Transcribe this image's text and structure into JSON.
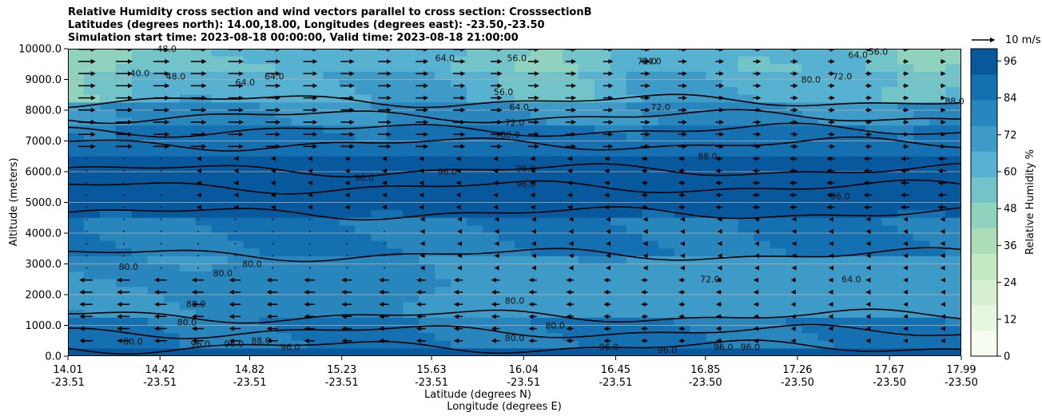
{
  "chart_data": {
    "type": "heatmap",
    "title_lines": [
      "Relative Humidity cross section and wind vectors parallel to cross section: CrosssectionB",
      "Latitudes (degrees north): 14.00,18.00, Longitudes (degrees east): -23.50,-23.50",
      "Simulation start time: 2023-08-18 00:00:00, Valid time: 2023-08-18 21:00:00"
    ],
    "xlabel": "Latitude (degrees N)",
    "xlabel2": "Longitude (degrees E)",
    "ylabel": "Altitude (meters)",
    "ylim": [
      0,
      10000
    ],
    "xlim": [
      14.01,
      17.99
    ],
    "y_ticks": [
      "0.0",
      "1000.0",
      "2000.0",
      "3000.0",
      "4000.0",
      "5000.0",
      "6000.0",
      "7000.0",
      "8000.0",
      "9000.0",
      "10000.0"
    ],
    "y_tick_values": [
      0,
      1000,
      2000,
      3000,
      4000,
      5000,
      6000,
      7000,
      8000,
      9000,
      10000
    ],
    "x_ticks": [
      {
        "lat": "14.01",
        "lon": "-23.51",
        "value": 14.01
      },
      {
        "lat": "14.42",
        "lon": "-23.51",
        "value": 14.42
      },
      {
        "lat": "14.82",
        "lon": "-23.51",
        "value": 14.82
      },
      {
        "lat": "15.23",
        "lon": "-23.51",
        "value": 15.23
      },
      {
        "lat": "15.63",
        "lon": "-23.51",
        "value": 15.63
      },
      {
        "lat": "16.04",
        "lon": "-23.51",
        "value": 16.04
      },
      {
        "lat": "16.45",
        "lon": "-23.51",
        "value": 16.45
      },
      {
        "lat": "16.85",
        "lon": "-23.50",
        "value": 16.85
      },
      {
        "lat": "17.26",
        "lon": "-23.50",
        "value": 17.26
      },
      {
        "lat": "17.67",
        "lon": "-23.50",
        "value": 17.67
      },
      {
        "lat": "17.99",
        "lon": "-23.50",
        "value": 17.99
      }
    ],
    "colorbar": {
      "label": "Relative Humidity %",
      "min": 0,
      "max": 100,
      "ticks": [
        "0",
        "12",
        "24",
        "36",
        "48",
        "60",
        "72",
        "84",
        "96"
      ],
      "tick_values": [
        0,
        12,
        24,
        36,
        48,
        60,
        72,
        84,
        96
      ],
      "colors": [
        "#f7fcf0",
        "#e6f6e1",
        "#d7efd1",
        "#c4e8c1",
        "#abdeb6",
        "#8fd3bf",
        "#72c4c8",
        "#57b1d0",
        "#3e9bc8",
        "#2886bd",
        "#1470b0",
        "#08589e"
      ]
    },
    "wind_key": {
      "label": "10 m/s",
      "speed": 10
    },
    "contour_levels": [
      40,
      48,
      56,
      64,
      72,
      80,
      88,
      96
    ],
    "contour_labels": [
      {
        "text": "96.0",
        "lat": 16.05,
        "alt": 6000
      },
      {
        "text": "96.0",
        "lat": 16.05,
        "alt": 5500
      },
      {
        "text": "96.0",
        "lat": 15.33,
        "alt": 5700
      },
      {
        "text": "96.0",
        "lat": 15.7,
        "alt": 5900
      },
      {
        "text": "96.0",
        "lat": 17.45,
        "alt": 5100
      },
      {
        "text": "80.0",
        "lat": 15.98,
        "alt": 7100
      },
      {
        "text": "72.0",
        "lat": 16.0,
        "alt": 7500
      },
      {
        "text": "64.0",
        "lat": 16.02,
        "alt": 8000
      },
      {
        "text": "56.0",
        "lat": 15.95,
        "alt": 8500
      },
      {
        "text": "64.0",
        "lat": 14.8,
        "alt": 8800
      },
      {
        "text": "64.0",
        "lat": 14.93,
        "alt": 9000
      },
      {
        "text": "48.0",
        "lat": 14.49,
        "alt": 9000
      },
      {
        "text": "40.0",
        "lat": 14.33,
        "alt": 9100
      },
      {
        "text": "48.0",
        "lat": 14.45,
        "alt": 9900
      },
      {
        "text": "64.0",
        "lat": 15.69,
        "alt": 9600
      },
      {
        "text": "56.0",
        "lat": 16.01,
        "alt": 9600
      },
      {
        "text": "72.0",
        "lat": 16.59,
        "alt": 9500
      },
      {
        "text": "64.0",
        "lat": 16.61,
        "alt": 9500
      },
      {
        "text": "80.0",
        "lat": 17.32,
        "alt": 8900
      },
      {
        "text": "72.0",
        "lat": 17.46,
        "alt": 9000
      },
      {
        "text": "64.0",
        "lat": 17.53,
        "alt": 9700
      },
      {
        "text": "56.0",
        "lat": 17.62,
        "alt": 9800
      },
      {
        "text": "72.0",
        "lat": 16.65,
        "alt": 8000
      },
      {
        "text": "88.0",
        "lat": 17.96,
        "alt": 8200
      },
      {
        "text": "88.0",
        "lat": 16.86,
        "alt": 6400
      },
      {
        "text": "80.0",
        "lat": 14.54,
        "alt": 1000
      },
      {
        "text": "88.0",
        "lat": 14.58,
        "alt": 1600
      },
      {
        "text": "80.0",
        "lat": 14.28,
        "alt": 2800
      },
      {
        "text": "80.0",
        "lat": 14.7,
        "alt": 2600
      },
      {
        "text": "80.0",
        "lat": 14.83,
        "alt": 2900
      },
      {
        "text": "80.0",
        "lat": 14.3,
        "alt": 380
      },
      {
        "text": "88.0",
        "lat": 14.87,
        "alt": 400
      },
      {
        "text": "96.0",
        "lat": 15.0,
        "alt": 200
      },
      {
        "text": "96.0",
        "lat": 14.75,
        "alt": 300
      },
      {
        "text": "96.0",
        "lat": 14.6,
        "alt": 300
      },
      {
        "text": "80.0",
        "lat": 16.0,
        "alt": 1700
      },
      {
        "text": "80.0",
        "lat": 16.18,
        "alt": 900
      },
      {
        "text": "80.0",
        "lat": 16.0,
        "alt": 500
      },
      {
        "text": "72.0",
        "lat": 16.87,
        "alt": 2400
      },
      {
        "text": "64.0",
        "lat": 17.5,
        "alt": 2400
      },
      {
        "text": "96.0",
        "lat": 16.68,
        "alt": 100
      },
      {
        "text": "96.0",
        "lat": 16.93,
        "alt": 200
      },
      {
        "text": "96.0",
        "lat": 17.05,
        "alt": 200
      },
      {
        "text": "96.0",
        "lat": 16.42,
        "alt": 200
      }
    ]
  }
}
